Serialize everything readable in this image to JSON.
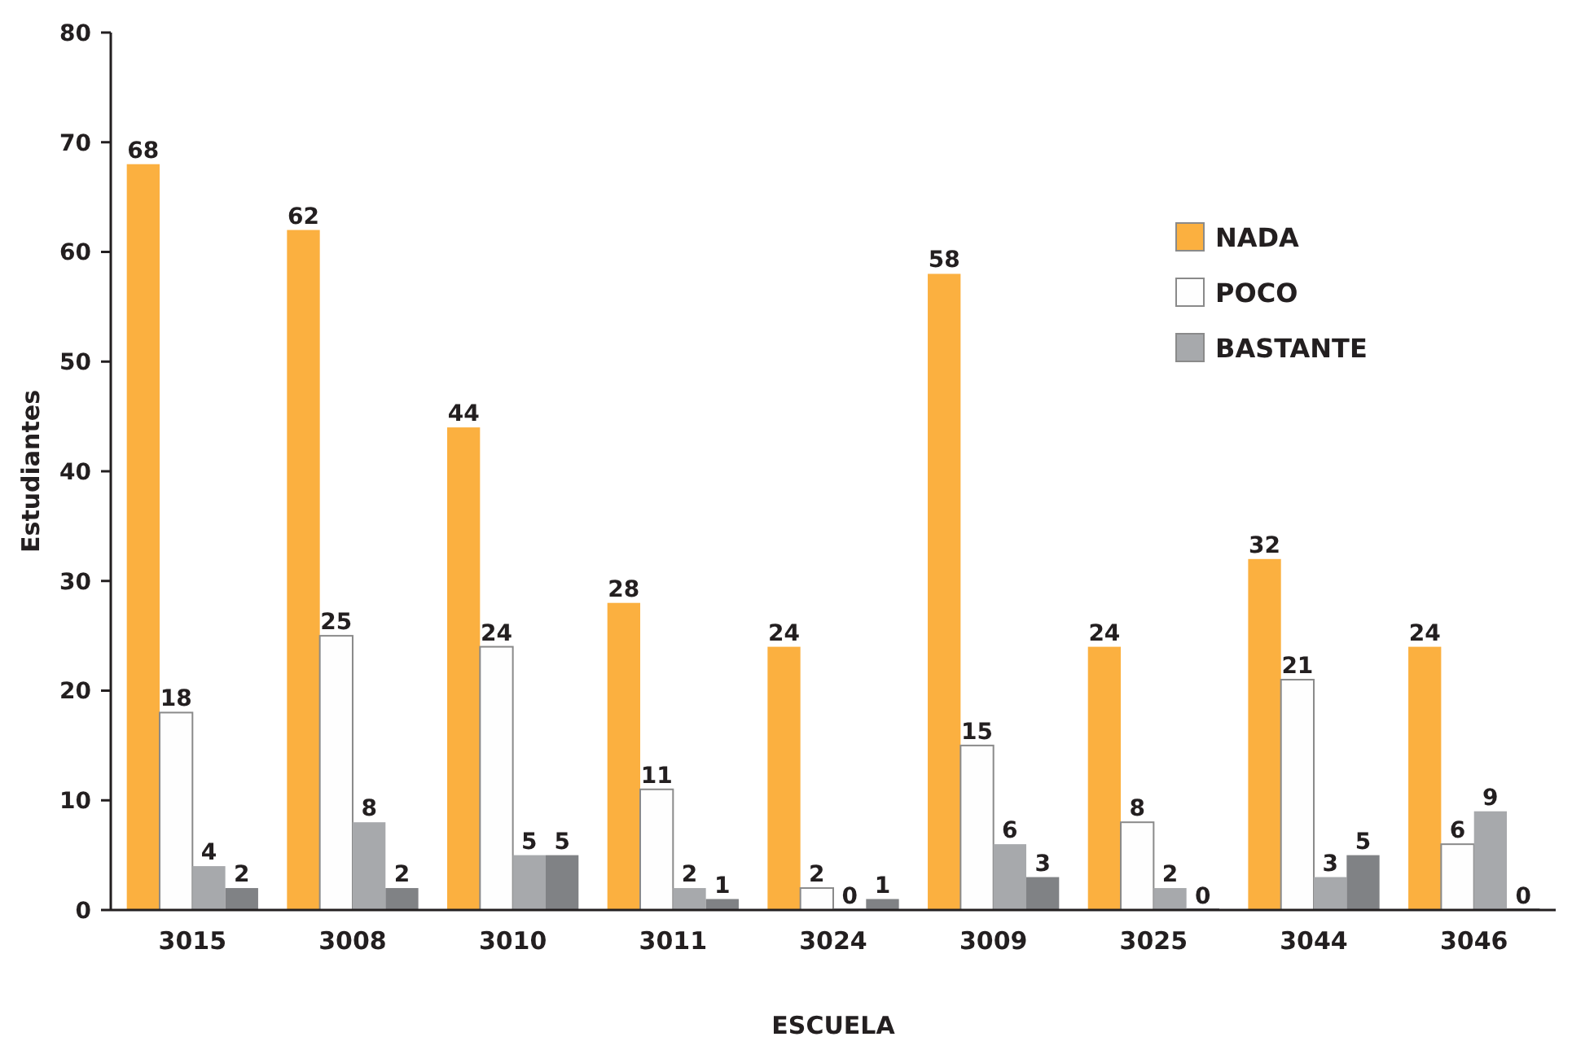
{
  "chart_data": {
    "type": "bar",
    "xlabel": "ESCUELA",
    "ylabel": "Estudiantes",
    "categories": [
      "3015",
      "3008",
      "3010",
      "3011",
      "3024",
      "3009",
      "3025",
      "3044",
      "3046"
    ],
    "series": [
      {
        "name": "NADA",
        "color": "#fbb040",
        "values": [
          68,
          62,
          44,
          28,
          24,
          58,
          24,
          32,
          24
        ]
      },
      {
        "name": "POCO",
        "color": "#fefefe",
        "values": [
          18,
          25,
          24,
          11,
          2,
          15,
          8,
          21,
          6
        ]
      },
      {
        "name": "BASTANTE",
        "color": "#a7a9ac",
        "values": [
          4,
          8,
          5,
          2,
          0,
          6,
          2,
          3,
          9
        ]
      },
      {
        "color": "#808285",
        "values": [
          2,
          2,
          5,
          1,
          1,
          3,
          0,
          5,
          0
        ]
      }
    ],
    "ylim": [
      0,
      80
    ],
    "yticks": [
      0,
      10,
      20,
      30,
      40,
      50,
      60,
      70,
      80
    ],
    "data_labels": true,
    "legend": "top right",
    "grid": false
  }
}
